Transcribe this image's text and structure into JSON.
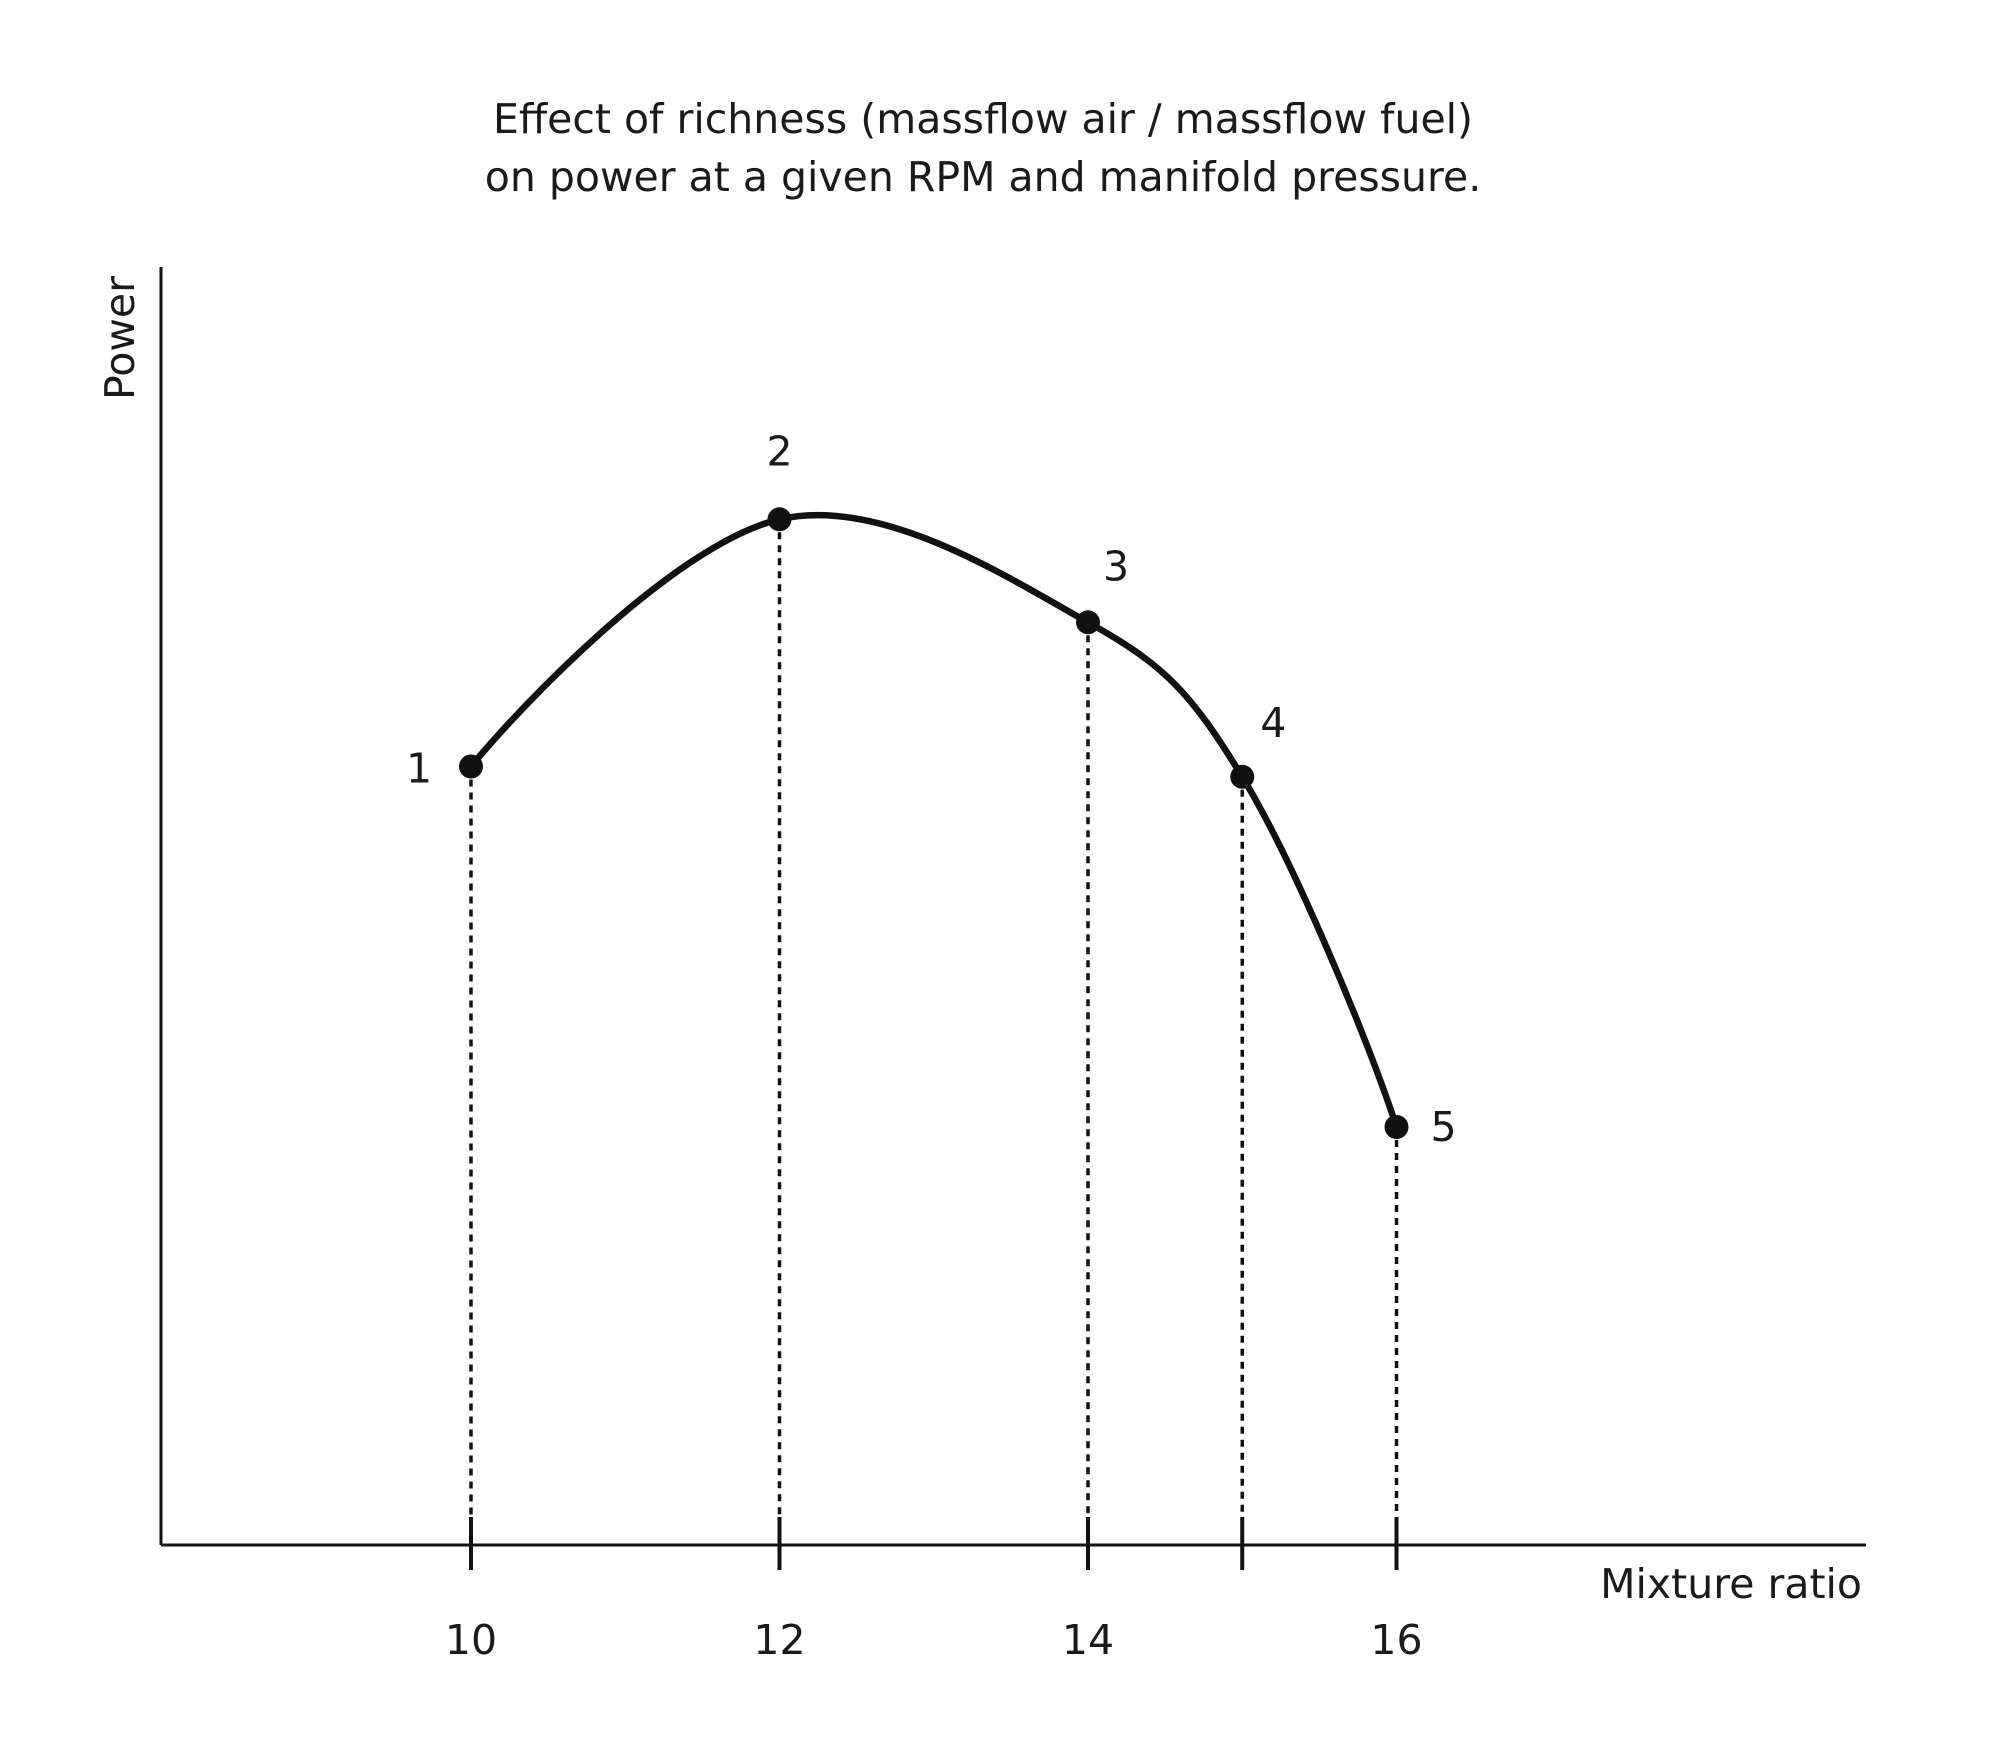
{
  "chart_data": {
    "type": "line",
    "title": "Effect of richness (massflow air / massflow fuel)",
    "subtitle": "on power at a given RPM and manifold pressure.",
    "xlabel": "Mixture ratio",
    "ylabel": "Power",
    "x_ticks": [
      "10",
      "12",
      "14",
      "15",
      "16"
    ],
    "x_tick_labels_printed": [
      "10",
      "12",
      "14",
      "",
      "16"
    ],
    "xlim": [
      8,
      19
    ],
    "ylim": [
      0,
      100
    ],
    "grid": false,
    "legend": "none",
    "line_color": "#111111",
    "points": [
      {
        "label": "1",
        "x": 10,
        "y": 76
      },
      {
        "label": "2",
        "x": 12,
        "y": 100
      },
      {
        "label": "3",
        "x": 14,
        "y": 90
      },
      {
        "label": "4",
        "x": 15,
        "y": 75
      },
      {
        "label": "5",
        "x": 16,
        "y": 41
      }
    ]
  }
}
